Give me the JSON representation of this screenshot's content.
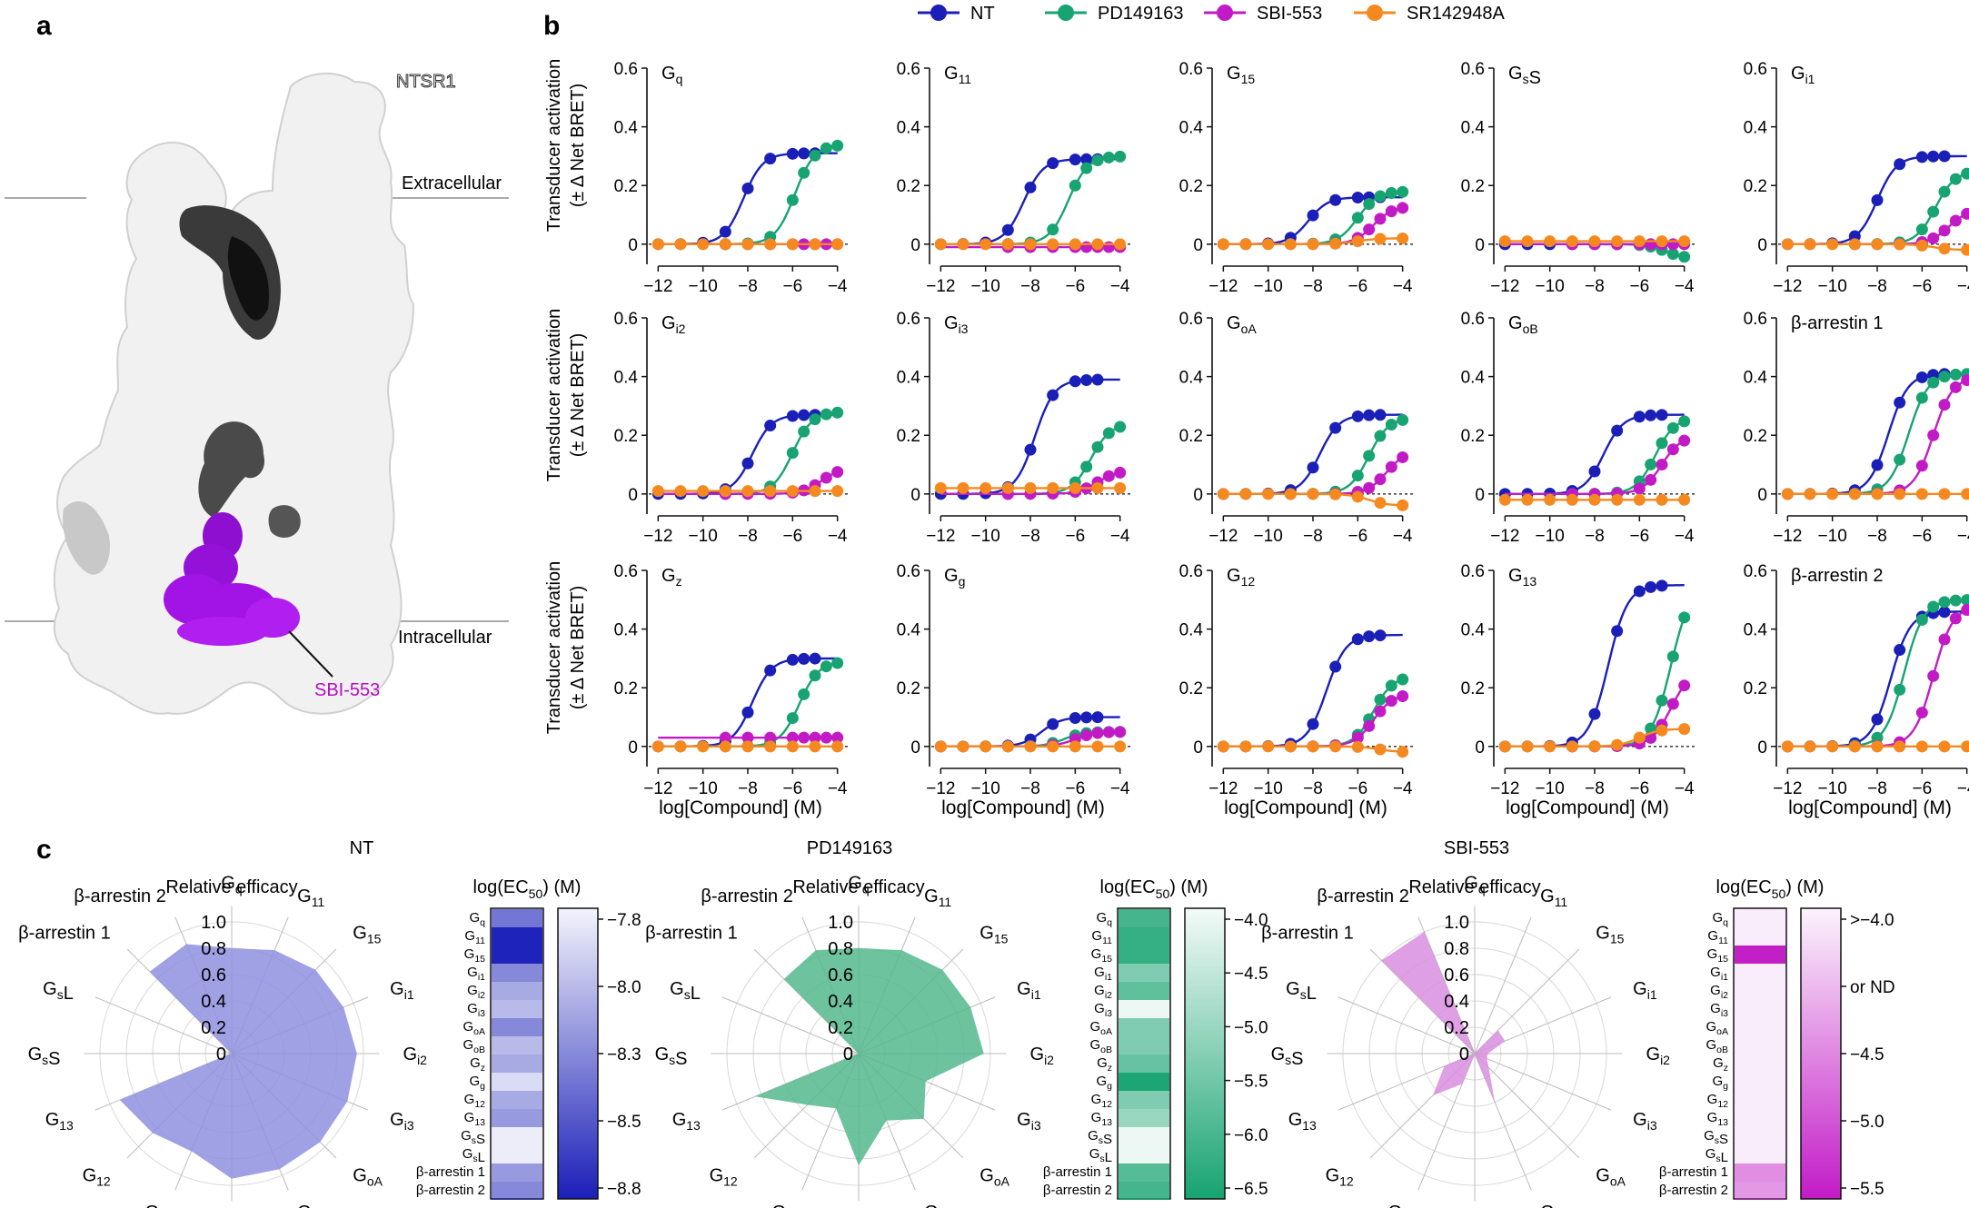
{
  "panel_labels": {
    "a": "a",
    "b": "b",
    "c": "c"
  },
  "colors": {
    "NT": "#1a1fb8",
    "PD149163": "#17a372",
    "SBI-553": "#c21bc6",
    "SR142948A": "#f5891f",
    "NT_fill": "#8f8fe0",
    "PD_fill": "#55b98e",
    "SBI_fill": "#d98ee0"
  },
  "panel_a": {
    "receptor": "NTSR1",
    "extracellular": "Extracellular",
    "intracellular": "Intracellular",
    "ligand": "SBI-553"
  },
  "legend": [
    "NT",
    "PD149163",
    "SBI-553",
    "SR142948A"
  ],
  "panel_b": {
    "ylabel_line1": "Transducer activation",
    "ylabel_line2": "(± Δ Net BRET)",
    "xlabel": "log[Compound] (M)",
    "chart_data": {
      "type": "line",
      "x_ticks": [
        -12,
        -10,
        -8,
        -6,
        -4
      ],
      "y_ticks": [
        "0",
        "0.2",
        "0.4",
        "0.6"
      ],
      "ylim": [
        -0.05,
        0.6
      ],
      "xlim": [
        -12.5,
        -3.5
      ],
      "transducers": [
        {
          "name": "Gq",
          "html": "G<sub>q</sub>",
          "curves": {
            "NT": {
              "ec50": -8.2,
              "top": 0.31
            },
            "PD149163": {
              "ec50": -5.9,
              "top": 0.34
            },
            "SBI-553": {
              "ec50": 0,
              "top": 0.0
            },
            "SR142948A": {
              "ec50": 0,
              "top": 0.0
            }
          }
        },
        {
          "name": "G11",
          "html": "G<sub>11</sub>",
          "curves": {
            "NT": {
              "ec50": -8.3,
              "top": 0.29
            },
            "PD149163": {
              "ec50": -6.3,
              "top": 0.3
            },
            "SBI-553": {
              "ec50": 0,
              "top": -0.01
            },
            "SR142948A": {
              "ec50": 0,
              "top": 0.0
            }
          }
        },
        {
          "name": "G15",
          "html": "G<sub>15</sub>",
          "curves": {
            "NT": {
              "ec50": -8.2,
              "top": 0.16
            },
            "PD149163": {
              "ec50": -6.0,
              "top": 0.18
            },
            "SBI-553": {
              "ec50": -5.3,
              "top": 0.13
            },
            "SR142948A": {
              "ec50": -6.0,
              "top": 0.02
            }
          }
        },
        {
          "name": "GsS",
          "html": "G<sub>s</sub>S",
          "curves": {
            "NT": {
              "ec50": 0,
              "top": 0.0
            },
            "PD149163": {
              "ec50": -4.8,
              "top": -0.05
            },
            "SBI-553": {
              "ec50": 0,
              "top": 0.0
            },
            "SR142948A": {
              "ec50": 0,
              "top": 0.01
            }
          }
        },
        {
          "name": "Gi1",
          "html": "G<sub>i1</sub>",
          "curves": {
            "NT": {
              "ec50": -8.0,
              "top": 0.3
            },
            "PD149163": {
              "ec50": -5.4,
              "top": 0.25
            },
            "SBI-553": {
              "ec50": -4.8,
              "top": 0.12
            },
            "SR142948A": {
              "ec50": -5.5,
              "top": -0.02
            }
          }
        },
        {
          "name": "Gi2",
          "html": "G<sub>i2</sub>",
          "curves": {
            "NT": {
              "ec50": -7.8,
              "top": 0.27
            },
            "PD149163": {
              "ec50": -6.0,
              "top": 0.28
            },
            "SBI-553": {
              "ec50": -4.7,
              "top": 0.09
            },
            "SR142948A": {
              "ec50": 0,
              "top": 0.01
            }
          }
        },
        {
          "name": "Gi3",
          "html": "G<sub>i3</sub>",
          "curves": {
            "NT": {
              "ec50": -7.8,
              "top": 0.39
            },
            "PD149163": {
              "ec50": -5.3,
              "top": 0.24
            },
            "SBI-553": {
              "ec50": -5.0,
              "top": 0.08
            },
            "SR142948A": {
              "ec50": 0,
              "top": 0.02
            }
          }
        },
        {
          "name": "GoA",
          "html": "G<sub>oA</sub>",
          "curves": {
            "NT": {
              "ec50": -7.7,
              "top": 0.27
            },
            "PD149163": {
              "ec50": -5.5,
              "top": 0.26
            },
            "SBI-553": {
              "ec50": -4.7,
              "top": 0.15
            },
            "SR142948A": {
              "ec50": -5.5,
              "top": -0.04
            }
          }
        },
        {
          "name": "GoB",
          "html": "G<sub>oB</sub>",
          "curves": {
            "NT": {
              "ec50": -7.6,
              "top": 0.27
            },
            "PD149163": {
              "ec50": -5.3,
              "top": 0.26
            },
            "SBI-553": {
              "ec50": -5.0,
              "top": 0.2
            },
            "SR142948A": {
              "ec50": 0,
              "top": -0.02
            }
          }
        },
        {
          "name": "β-arrestin 1",
          "html": "β-arrestin 1",
          "curves": {
            "NT": {
              "ec50": -7.5,
              "top": 0.41
            },
            "PD149163": {
              "ec50": -6.6,
              "top": 0.41
            },
            "SBI-553": {
              "ec50": -5.5,
              "top": 0.4
            },
            "SR142948A": {
              "ec50": 0,
              "top": 0.0
            }
          }
        },
        {
          "name": "Gz",
          "html": "G<sub>z</sub>",
          "curves": {
            "NT": {
              "ec50": -7.8,
              "top": 0.3
            },
            "PD149163": {
              "ec50": -5.7,
              "top": 0.29
            },
            "SBI-553": {
              "ec50": 0,
              "top": 0.03
            },
            "SR142948A": {
              "ec50": 0,
              "top": 0.0
            }
          }
        },
        {
          "name": "Gg",
          "html": "G<sub>g</sub>",
          "curves": {
            "NT": {
              "ec50": -7.5,
              "top": 0.1
            },
            "PD149163": {
              "ec50": -6.5,
              "top": 0.05
            },
            "SBI-553": {
              "ec50": -6.0,
              "top": 0.05
            },
            "SR142948A": {
              "ec50": 0,
              "top": 0.0
            }
          }
        },
        {
          "name": "G12",
          "html": "G<sub>12</sub>",
          "curves": {
            "NT": {
              "ec50": -7.4,
              "top": 0.38
            },
            "PD149163": {
              "ec50": -5.3,
              "top": 0.24
            },
            "SBI-553": {
              "ec50": -5.3,
              "top": 0.18
            },
            "SR142948A": {
              "ec50": -5.0,
              "top": -0.02
            }
          }
        },
        {
          "name": "G13",
          "html": "G<sub>13</sub>",
          "curves": {
            "NT": {
              "ec50": -7.4,
              "top": 0.55
            },
            "PD149163": {
              "ec50": -4.6,
              "top": 0.55
            },
            "SBI-553": {
              "ec50": -4.6,
              "top": 0.26
            },
            "SR142948A": {
              "ec50": -6.0,
              "top": 0.06
            }
          }
        },
        {
          "name": "β-arrestin 2",
          "html": "β-arrestin 2",
          "curves": {
            "NT": {
              "ec50": -7.4,
              "top": 0.46
            },
            "PD149163": {
              "ec50": -6.8,
              "top": 0.5
            },
            "SBI-553": {
              "ec50": -5.5,
              "top": 0.48
            },
            "SR142948A": {
              "ec50": 0,
              "top": 0.0
            }
          }
        }
      ]
    }
  },
  "panel_c": {
    "radar_title": "Relative efficacy",
    "ec50_title": "log(EC50) (M)",
    "radial_ticks": [
      "1.0",
      "0.8",
      "0.6",
      "0.4",
      "0.2",
      "0"
    ],
    "spokes": [
      "Gq",
      "G11",
      "G15",
      "Gi1",
      "Gi2",
      "Gi3",
      "GoA",
      "GoB",
      "Gz",
      "Gg",
      "G12",
      "G13",
      "GsS",
      "GsL",
      "β-arrestin 1",
      "β-arrestin 2"
    ],
    "heat_rows": [
      "Gq",
      "G11",
      "G15",
      "Gi1",
      "Gi2",
      "Gi3",
      "GoA",
      "GoB",
      "Gz",
      "Gg",
      "G12",
      "G13",
      "GsS",
      "GsL",
      "β-arrestin 1",
      "β-arrestin 2"
    ],
    "chart_data": [
      {
        "type": "radar",
        "title": "NT",
        "values": [
          0.8,
          0.85,
          0.9,
          0.92,
          0.95,
          0.95,
          0.95,
          0.95,
          0.95,
          0.8,
          0.85,
          0.92,
          0.0,
          0.0,
          0.88,
          0.9
        ],
        "ec50": [
          -8.3,
          -8.8,
          -8.8,
          -8.2,
          -8.0,
          -7.9,
          -8.2,
          -7.9,
          -8.0,
          -7.7,
          -8.0,
          -8.1,
          -7.6,
          -7.6,
          -8.1,
          -8.2
        ],
        "scale_ticks": [
          "-7.8",
          "-8.0",
          "-8.3",
          "-8.5",
          "-8.8"
        ]
      },
      {
        "type": "radar",
        "title": "PD149163",
        "values": [
          0.8,
          0.85,
          0.9,
          0.92,
          0.95,
          0.55,
          0.7,
          0.55,
          0.85,
          0.45,
          0.55,
          0.85,
          0.0,
          0.0,
          0.8,
          0.85
        ],
        "ec50": [
          -6.0,
          -6.2,
          -6.2,
          -5.3,
          -5.7,
          -4.0,
          -5.3,
          -5.3,
          -5.6,
          -6.5,
          -5.3,
          -5.0,
          -4.0,
          -4.0,
          -5.8,
          -6.0
        ],
        "scale_ticks": [
          "-4.0",
          "-4.5",
          "-5.0",
          "-5.5",
          "-6.0",
          "-6.5"
        ]
      },
      {
        "type": "radar",
        "title": "SBI-553",
        "values": [
          0.0,
          0.0,
          0.25,
          0.25,
          0.1,
          0.1,
          0.15,
          0.4,
          0.0,
          0.25,
          0.45,
          0.25,
          0.0,
          0.0,
          1.0,
          1.0
        ],
        "ec50": [
          -4.0,
          -4.0,
          -5.7,
          -4.0,
          -4.0,
          -4.0,
          -4.0,
          -4.0,
          -4.0,
          -4.0,
          -4.0,
          -4.0,
          -4.0,
          -4.0,
          -4.8,
          -4.7
        ],
        "scale_ticks": [
          ">−4.0",
          "or ND",
          "-4.5",
          "-5.0",
          "-5.5"
        ]
      }
    ]
  }
}
